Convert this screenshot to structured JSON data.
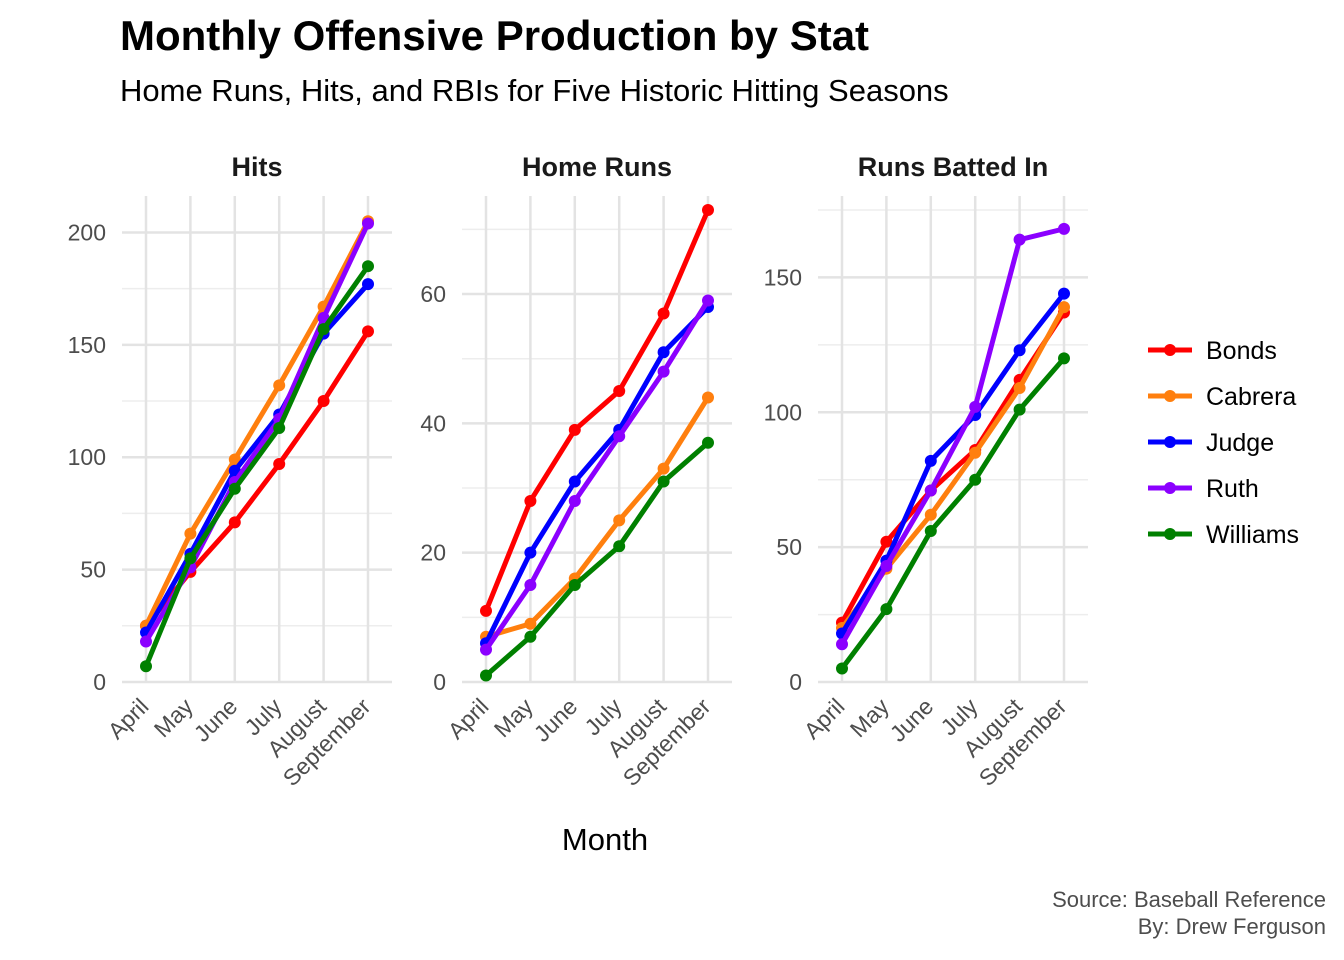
{
  "title": "Monthly Offensive Production by Stat",
  "subtitle": "Home Runs, Hits, and RBIs for Five Historic Hitting Seasons",
  "caption": {
    "line1": "Source: Baseball Reference",
    "line2": "By: Drew Ferguson"
  },
  "chart_data": {
    "type": "line",
    "xlabel": "Month",
    "ylabel": "",
    "categories": [
      "April",
      "May",
      "June",
      "July",
      "August",
      "September"
    ],
    "legend_position": "right",
    "grid": true,
    "colors": {
      "Bonds": "#ff0000",
      "Cabrera": "#ff7f0e",
      "Judge": "#0000ff",
      "Ruth": "#8b00ff",
      "Williams": "#008000"
    },
    "legend": [
      "Bonds",
      "Cabrera",
      "Judge",
      "Ruth",
      "Williams"
    ],
    "panels": [
      {
        "title": "Hits",
        "ylim": [
          0,
          210
        ],
        "yticks": [
          0,
          50,
          100,
          150,
          200
        ],
        "series": [
          {
            "name": "Bonds",
            "values": [
              25,
              49,
              71,
              97,
              125,
              156
            ]
          },
          {
            "name": "Cabrera",
            "values": [
              25,
              66,
              99,
              132,
              167,
              205
            ]
          },
          {
            "name": "Judge",
            "values": [
              22,
              57,
              94,
              119,
              155,
              177
            ]
          },
          {
            "name": "Ruth",
            "values": [
              18,
              51,
              89,
              117,
              162,
              204
            ]
          },
          {
            "name": "Williams",
            "values": [
              7,
              55,
              86,
              113,
              157,
              185
            ]
          }
        ]
      },
      {
        "title": "Home Runs",
        "ylim": [
          0,
          73
        ],
        "yticks": [
          0,
          20,
          40,
          60
        ],
        "series": [
          {
            "name": "Bonds",
            "values": [
              11,
              28,
              39,
              45,
              57,
              73
            ]
          },
          {
            "name": "Cabrera",
            "values": [
              7,
              9,
              16,
              25,
              33,
              44
            ]
          },
          {
            "name": "Judge",
            "values": [
              6,
              20,
              31,
              39,
              51,
              58
            ]
          },
          {
            "name": "Ruth",
            "values": [
              5,
              15,
              28,
              38,
              48,
              59
            ]
          },
          {
            "name": "Williams",
            "values": [
              1,
              7,
              15,
              21,
              31,
              37
            ]
          }
        ]
      },
      {
        "title": "Runs Batted In",
        "ylim": [
          0,
          175
        ],
        "yticks": [
          0,
          50,
          100,
          150
        ],
        "series": [
          {
            "name": "Bonds",
            "values": [
              22,
              52,
              71,
              86,
              112,
              137
            ]
          },
          {
            "name": "Cabrera",
            "values": [
              20,
              42,
              62,
              85,
              109,
              139
            ]
          },
          {
            "name": "Judge",
            "values": [
              18,
              45,
              82,
              99,
              123,
              144
            ]
          },
          {
            "name": "Ruth",
            "values": [
              14,
              43,
              71,
              102,
              164,
              168
            ]
          },
          {
            "name": "Williams",
            "values": [
              5,
              27,
              56,
              75,
              101,
              120
            ]
          }
        ]
      }
    ]
  }
}
